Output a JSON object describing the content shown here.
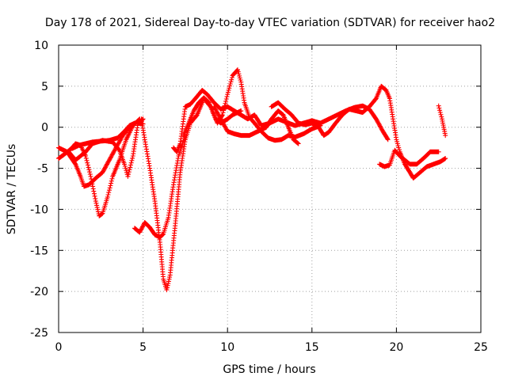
{
  "chart_data": {
    "type": "scatter",
    "title": "Day 178 of 2021, Sidereal Day-to-day VTEC variation (SDTVAR) for receiver hao2",
    "xlabel": "GPS time / hours",
    "ylabel": "SDTVAR / TECUs",
    "xlim": [
      0,
      25
    ],
    "ylim": [
      -25,
      10
    ],
    "xticks": [
      0,
      5,
      10,
      15,
      20,
      25
    ],
    "yticks": [
      -25,
      -20,
      -15,
      -10,
      -5,
      0,
      5,
      10
    ],
    "xtick_labels": [
      "0",
      "5",
      "10",
      "15",
      "20",
      "25"
    ],
    "ytick_labels": [
      "-25",
      "-20",
      "-15",
      "-10",
      "-5",
      "0",
      "5",
      "10"
    ],
    "grid": true,
    "marker": "+",
    "color": "#ff0000",
    "series": [
      {
        "name": "trace-1",
        "points": [
          [
            0,
            -3.8
          ],
          [
            0.4,
            -3.2
          ],
          [
            0.8,
            -2.5
          ],
          [
            1.0,
            -2.0
          ],
          [
            1.3,
            -2.2
          ],
          [
            1.6,
            -3.5
          ],
          [
            1.9,
            -6.0
          ],
          [
            2.2,
            -9.0
          ],
          [
            2.4,
            -10.8
          ],
          [
            2.6,
            -10.5
          ],
          [
            2.9,
            -8.5
          ],
          [
            3.2,
            -6.0
          ],
          [
            3.6,
            -4.0
          ],
          [
            4.0,
            -1.5
          ],
          [
            4.4,
            0.2
          ],
          [
            4.8,
            1.0
          ]
        ]
      },
      {
        "name": "trace-2",
        "points": [
          [
            0,
            -2.5
          ],
          [
            0.5,
            -3.0
          ],
          [
            1.0,
            -4.5
          ],
          [
            1.3,
            -6.0
          ],
          [
            1.5,
            -7.2
          ],
          [
            1.8,
            -7.0
          ],
          [
            2.2,
            -6.2
          ],
          [
            2.6,
            -5.5
          ],
          [
            3.0,
            -4.0
          ],
          [
            3.4,
            -2.5
          ],
          [
            3.8,
            -1.0
          ],
          [
            4.2,
            0.0
          ],
          [
            4.6,
            0.6
          ],
          [
            5.0,
            0.4
          ]
        ]
      },
      {
        "name": "trace-3",
        "points": [
          [
            0.6,
            -3.0
          ],
          [
            1.0,
            -4.0
          ],
          [
            1.6,
            -3.0
          ],
          [
            2.0,
            -2.0
          ],
          [
            2.6,
            -1.6
          ],
          [
            3.2,
            -1.8
          ],
          [
            3.6,
            -2.8
          ],
          [
            3.9,
            -4.5
          ],
          [
            4.1,
            -6.0
          ],
          [
            4.4,
            -3.5
          ],
          [
            4.7,
            0.5
          ],
          [
            5.0,
            1.0
          ]
        ]
      },
      {
        "name": "trace-4",
        "points": [
          [
            0.8,
            -2.6
          ],
          [
            1.2,
            -2.2
          ],
          [
            1.6,
            -2.0
          ],
          [
            2.0,
            -1.8
          ],
          [
            2.5,
            -1.7
          ],
          [
            3.0,
            -1.6
          ],
          [
            3.5,
            -1.3
          ],
          [
            3.9,
            -0.5
          ],
          [
            4.2,
            0.2
          ],
          [
            4.5,
            0.5
          ]
        ]
      },
      {
        "name": "trace-5",
        "points": [
          [
            4.5,
            -12.3
          ],
          [
            4.8,
            -12.8
          ],
          [
            5.1,
            -11.6
          ],
          [
            5.4,
            -12.2
          ],
          [
            5.7,
            -13.1
          ],
          [
            6.0,
            -13.4
          ],
          [
            6.2,
            -13.0
          ],
          [
            6.5,
            -11.0
          ],
          [
            6.8,
            -7.0
          ],
          [
            7.1,
            -3.5
          ],
          [
            7.5,
            -1.0
          ]
        ]
      },
      {
        "name": "trace-6",
        "points": [
          [
            4.9,
            1.0
          ],
          [
            5.1,
            -1.5
          ],
          [
            5.4,
            -5.0
          ],
          [
            5.7,
            -9.0
          ],
          [
            6.0,
            -14.0
          ],
          [
            6.2,
            -18.5
          ],
          [
            6.4,
            -19.8
          ],
          [
            6.6,
            -18.0
          ],
          [
            6.9,
            -12.0
          ],
          [
            7.2,
            -5.5
          ],
          [
            7.5,
            -1.5
          ],
          [
            7.8,
            0.5
          ],
          [
            8.2,
            1.5
          ],
          [
            8.6,
            3.5
          ],
          [
            9.0,
            2.5
          ],
          [
            9.3,
            1.0
          ],
          [
            9.6,
            0.5
          ],
          [
            10.0,
            1.0
          ],
          [
            10.3,
            1.5
          ],
          [
            10.8,
            2.0
          ]
        ]
      },
      {
        "name": "trace-7",
        "points": [
          [
            6.8,
            -2.5
          ],
          [
            7.0,
            -3.0
          ],
          [
            7.2,
            -2.0
          ],
          [
            7.5,
            2.5
          ],
          [
            7.8,
            2.8
          ],
          [
            8.1,
            3.5
          ],
          [
            8.5,
            4.5
          ],
          [
            8.8,
            4.0
          ],
          [
            9.2,
            3.0
          ],
          [
            9.6,
            2.2
          ],
          [
            10.0,
            2.5
          ],
          [
            10.4,
            2.0
          ],
          [
            10.8,
            1.5
          ],
          [
            11.2,
            1.0
          ],
          [
            11.6,
            1.5
          ],
          [
            12.0,
            0.2
          ],
          [
            12.5,
            0.5
          ],
          [
            13.0,
            1.0
          ],
          [
            13.5,
            0.6
          ],
          [
            14.0,
            0.2
          ],
          [
            14.5,
            0.5
          ],
          [
            15.0,
            0.8
          ],
          [
            15.5,
            0.5
          ],
          [
            16.0,
            1.0
          ],
          [
            16.5,
            1.5
          ],
          [
            17.0,
            2.0
          ],
          [
            17.5,
            2.4
          ],
          [
            18.0,
            2.6
          ],
          [
            18.4,
            2.2
          ],
          [
            18.8,
            1.0
          ],
          [
            19.2,
            -0.5
          ],
          [
            19.5,
            -1.5
          ]
        ]
      },
      {
        "name": "trace-8",
        "points": [
          [
            7.4,
            -1.0
          ],
          [
            7.7,
            0.5
          ],
          [
            8.0,
            2.0
          ],
          [
            8.3,
            3.0
          ],
          [
            8.6,
            3.6
          ],
          [
            8.9,
            3.0
          ],
          [
            9.2,
            1.5
          ],
          [
            9.4,
            0.5
          ],
          [
            9.7,
            1.5
          ],
          [
            10.0,
            4.0
          ],
          [
            10.3,
            6.3
          ],
          [
            10.6,
            7.0
          ],
          [
            10.8,
            5.5
          ],
          [
            11.0,
            3.0
          ],
          [
            11.3,
            1.2
          ],
          [
            11.6,
            0.5
          ],
          [
            12.0,
            -0.5
          ],
          [
            12.4,
            -1.3
          ],
          [
            12.8,
            -1.6
          ],
          [
            13.2,
            -1.5
          ],
          [
            13.6,
            -1.0
          ],
          [
            14.0,
            -1.2
          ],
          [
            14.5,
            -0.8
          ],
          [
            15.0,
            -0.2
          ],
          [
            15.5,
            0.2
          ]
        ]
      },
      {
        "name": "trace-9",
        "points": [
          [
            9.2,
            2.5
          ],
          [
            9.6,
            1.0
          ],
          [
            10.0,
            -0.5
          ],
          [
            10.4,
            -0.8
          ],
          [
            10.8,
            -1.0
          ],
          [
            11.3,
            -1.0
          ],
          [
            11.8,
            -0.5
          ],
          [
            12.3,
            0.0
          ],
          [
            12.6,
            1.0
          ],
          [
            13.0,
            2.0
          ],
          [
            13.3,
            1.5
          ],
          [
            13.6,
            0.0
          ],
          [
            13.9,
            -1.5
          ],
          [
            14.2,
            -2.0
          ]
        ]
      },
      {
        "name": "trace-10",
        "points": [
          [
            12.6,
            2.5
          ],
          [
            13.0,
            3.0
          ],
          [
            13.4,
            2.2
          ],
          [
            13.8,
            1.5
          ],
          [
            14.2,
            0.5
          ],
          [
            14.6,
            0.3
          ],
          [
            15.0,
            0.5
          ],
          [
            15.4,
            0.0
          ],
          [
            15.7,
            -1.0
          ],
          [
            16.0,
            -0.6
          ],
          [
            16.4,
            0.5
          ],
          [
            16.8,
            1.5
          ],
          [
            17.2,
            2.2
          ],
          [
            17.6,
            2.0
          ],
          [
            18.0,
            1.8
          ],
          [
            18.4,
            2.5
          ],
          [
            18.8,
            3.5
          ],
          [
            19.1,
            5.0
          ],
          [
            19.4,
            4.5
          ],
          [
            19.6,
            3.5
          ],
          [
            19.8,
            1.0
          ],
          [
            20.0,
            -1.5
          ],
          [
            20.2,
            -3.0
          ],
          [
            20.5,
            -4.5
          ],
          [
            20.8,
            -5.5
          ],
          [
            21.0,
            -6.2
          ],
          [
            21.4,
            -5.5
          ],
          [
            21.8,
            -4.8
          ],
          [
            22.2,
            -4.5
          ],
          [
            22.6,
            -4.2
          ],
          [
            22.9,
            -3.8
          ]
        ]
      },
      {
        "name": "trace-11",
        "points": [
          [
            19.0,
            -4.5
          ],
          [
            19.3,
            -4.8
          ],
          [
            19.6,
            -4.6
          ],
          [
            19.9,
            -2.8
          ],
          [
            20.2,
            -3.5
          ],
          [
            20.5,
            -4.0
          ],
          [
            20.8,
            -4.5
          ],
          [
            21.2,
            -4.5
          ],
          [
            21.6,
            -3.8
          ],
          [
            22.0,
            -3.0
          ],
          [
            22.5,
            -3.0
          ]
        ]
      },
      {
        "name": "trace-12",
        "points": [
          [
            22.5,
            2.6
          ],
          [
            22.7,
            1.0
          ],
          [
            22.8,
            0.0
          ],
          [
            22.9,
            -1.0
          ]
        ]
      }
    ]
  }
}
